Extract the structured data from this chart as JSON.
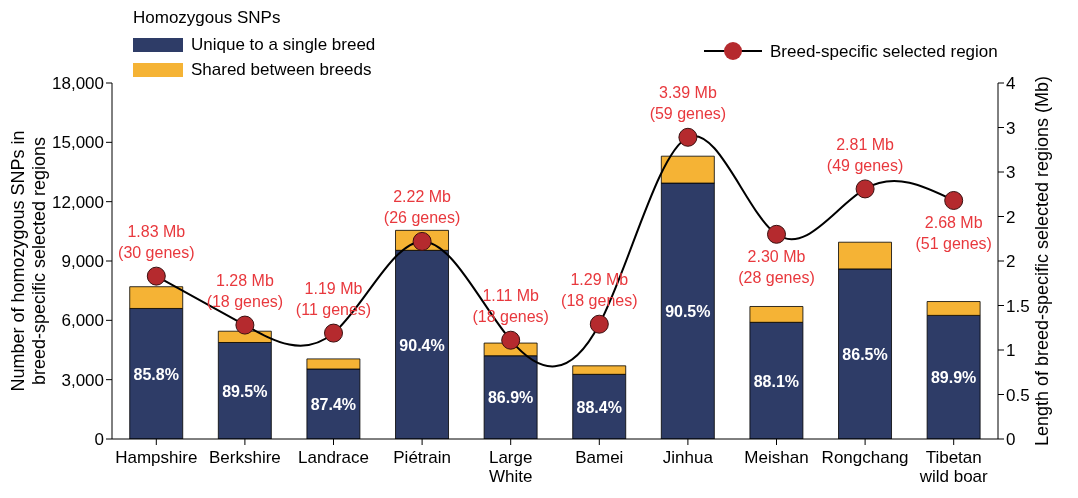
{
  "chart_data": {
    "type": "bar",
    "stacked": true,
    "legend": "top",
    "marker": "circle",
    "legend_title": "Homozygous SNPs",
    "ylabel": "Number of homozygous SNPs in\nbreed-specific selected regions",
    "y2label": "Length of breed-specific selected regions (Mb)",
    "annotations": [
      "85.8%",
      "89.5%",
      "87.4%",
      "90.4%",
      "86.9%",
      "88.4%",
      "90.5%",
      "88.1%",
      "86.5%",
      "89.9%"
    ],
    "categories": [
      "Hampshire",
      "Berkshire",
      "Landrace",
      "Piétrain",
      "Large White",
      "Bamei",
      "Jinhua",
      "Meishan",
      "Rongchang",
      "Tibetan wild boar"
    ],
    "ylim": [
      0,
      18000
    ],
    "yticks": [
      0,
      {
        "value": 3000,
        "label": "3,000"
      },
      {
        "value": 6000,
        "label": "6,000"
      },
      {
        "value": 9000,
        "label": "9,000"
      },
      {
        "value": 12000,
        "label": "12,000"
      },
      {
        "value": 15000,
        "label": "15,000"
      },
      {
        "value": 18000,
        "label": "18,000"
      }
    ],
    "y2lim": [
      0,
      4
    ],
    "y2ticks": [
      0,
      0.5,
      1,
      1.5,
      2,
      {
        "value": 2.5,
        "label": "2"
      },
      3,
      {
        "value": 3.5,
        "label": "3"
      },
      4
    ],
    "series": [
      {
        "name": "Unique to a single breed",
        "color": "#2e3c67",
        "values": [
          6600,
          4880,
          3540,
          9540,
          4210,
          3270,
          12940,
          5900,
          8600,
          6250
        ]
      },
      {
        "name": "Shared between breeds",
        "color": "#f5b335",
        "values": [
          1100,
          570,
          510,
          1010,
          640,
          430,
          1360,
          800,
          1350,
          700
        ]
      },
      {
        "name": "Breed-specific selected region",
        "type": "line",
        "axis": "y2",
        "color": "#b52a2e",
        "values": [
          1.83,
          1.28,
          1.19,
          2.22,
          1.11,
          1.29,
          3.39,
          2.3,
          2.81,
          2.68
        ],
        "value_labels": [
          "1.83 Mb\n(30 genes)",
          "1.28 Mb\n(18 genes)",
          "1.19 Mb\n(11 genes)",
          "2.22 Mb\n(26 genes)",
          "1.11 Mb\n(18 genes)",
          "1.29 Mb\n(18 genes)",
          "3.39 Mb\n(59 genes)",
          "2.30 Mb\n(28 genes)",
          "2.81 Mb\n(49 genes)",
          "2.68 Mb\n(51 genes)"
        ]
      }
    ]
  }
}
